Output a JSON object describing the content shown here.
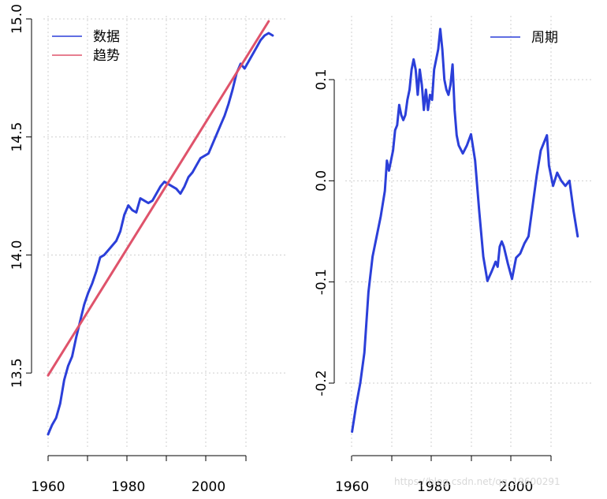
{
  "chart_data": [
    {
      "type": "line",
      "xlim": [
        1960,
        2017
      ],
      "ylim": [
        13.2,
        15.0
      ],
      "x_ticks": [
        1960,
        1980,
        2000
      ],
      "x_tick_labels": [
        "1960",
        "1980",
        "2000"
      ],
      "y_ticks": [
        13.5,
        14.0,
        14.5,
        15.0
      ],
      "y_tick_labels": [
        "13.5",
        "14.0",
        "14.5",
        "15.0"
      ],
      "grid": true,
      "legend_position": "top-left",
      "series": [
        {
          "name": "数据",
          "color": "#2b3fd9",
          "x": [
            1960.0,
            1960.5,
            1961.0,
            1962.0,
            1963.0,
            1964.0,
            1965.0,
            1966.0,
            1967.0,
            1968.0,
            1969.0,
            1970.0,
            1971.0,
            1972.0,
            1973.0,
            1974.0,
            1975.0,
            1976.0,
            1977.0,
            1978.0,
            1979.0,
            1980.0,
            1981.0,
            1982.0,
            1983.0,
            1984.0,
            1985.0,
            1986.0,
            1987.0,
            1988.0,
            1989.0,
            1990.0,
            1991.0,
            1992.0,
            1993.0,
            1994.0,
            1995.0,
            1996.0,
            1997.0,
            1998.0,
            1999.0,
            2000.0,
            2001.0,
            2002.0,
            2003.0,
            2004.0,
            2005.0,
            2006.0,
            2007.0,
            2008.0,
            2009.0,
            2010.0,
            2011.0,
            2012.0,
            2013.0,
            2014.0,
            2015.0,
            2016.0
          ],
          "y": [
            13.24,
            13.26,
            13.28,
            13.31,
            13.37,
            13.47,
            13.53,
            13.57,
            13.65,
            13.72,
            13.79,
            13.84,
            13.88,
            13.93,
            13.99,
            14.0,
            14.02,
            14.04,
            14.06,
            14.1,
            14.17,
            14.21,
            14.19,
            14.18,
            14.24,
            14.23,
            14.22,
            14.23,
            14.26,
            14.29,
            14.31,
            14.3,
            14.29,
            14.28,
            14.26,
            14.29,
            14.33,
            14.35,
            14.38,
            14.41,
            14.42,
            14.43,
            14.47,
            14.51,
            14.55,
            14.59,
            14.64,
            14.7,
            14.77,
            14.81,
            14.79,
            14.82,
            14.85,
            14.88,
            14.91,
            14.93,
            14.94,
            14.93
          ]
        },
        {
          "name": "趋势",
          "color": "#df536b",
          "x": [
            1960,
            2015
          ],
          "y": [
            13.49,
            14.99
          ]
        }
      ]
    },
    {
      "type": "line",
      "xlim": [
        1959.5,
        2016
      ],
      "ylim": [
        -0.26,
        0.16
      ],
      "x_ticks": [
        1960,
        1980,
        2000
      ],
      "x_tick_labels": [
        "1960",
        "1980",
        "2000"
      ],
      "y_ticks": [
        -0.2,
        -0.1,
        0.0,
        0.1
      ],
      "y_tick_labels": [
        "-0.2",
        "-0.1",
        "0.0",
        "0.1"
      ],
      "grid": true,
      "legend_position": "top-right",
      "series": [
        {
          "name": "周期",
          "color": "#2b3fd9",
          "x": [
            1960.0,
            1960.5,
            1961.0,
            1962.0,
            1963.0,
            1964.0,
            1965.0,
            1966.0,
            1967.0,
            1968.0,
            1968.5,
            1969.0,
            1969.5,
            1970.0,
            1970.5,
            1971.0,
            1971.5,
            1972.0,
            1972.5,
            1973.0,
            1973.5,
            1974.0,
            1974.5,
            1975.0,
            1975.5,
            1976.0,
            1976.5,
            1977.0,
            1977.5,
            1978.0,
            1978.5,
            1979.0,
            1979.5,
            1980.0,
            1980.5,
            1981.0,
            1981.5,
            1982.0,
            1982.5,
            1983.0,
            1983.5,
            1984.0,
            1984.5,
            1985.0,
            1985.5,
            1986.0,
            1987.0,
            1988.0,
            1989.0,
            1990.0,
            1991.0,
            1992.0,
            1993.0,
            1994.0,
            1994.5,
            1995.0,
            1995.5,
            1996.0,
            1996.5,
            1997.0,
            1998.0,
            1999.0,
            2000.0,
            2001.0,
            2002.0,
            2003.0,
            2004.0,
            2005.0,
            2006.0,
            2007.0,
            2007.5,
            2008.0,
            2009.0,
            2010.0,
            2011.0,
            2012.0,
            2013.0,
            2014.0,
            2015.0
          ],
          "y": [
            -0.248,
            -0.235,
            -0.222,
            -0.2,
            -0.17,
            -0.11,
            -0.075,
            -0.055,
            -0.035,
            -0.01,
            0.02,
            0.01,
            0.02,
            0.03,
            0.05,
            0.055,
            0.075,
            0.065,
            0.06,
            0.065,
            0.08,
            0.09,
            0.11,
            0.12,
            0.11,
            0.085,
            0.11,
            0.095,
            0.07,
            0.09,
            0.07,
            0.085,
            0.08,
            0.11,
            0.12,
            0.13,
            0.15,
            0.13,
            0.1,
            0.09,
            0.085,
            0.095,
            0.115,
            0.07,
            0.045,
            0.035,
            0.027,
            0.035,
            0.046,
            0.02,
            -0.03,
            -0.075,
            -0.099,
            -0.09,
            -0.085,
            -0.08,
            -0.085,
            -0.065,
            -0.06,
            -0.065,
            -0.082,
            -0.097,
            -0.076,
            -0.072,
            -0.062,
            -0.055,
            -0.025,
            0.005,
            0.03,
            0.04,
            0.045,
            0.015,
            -0.005,
            0.008,
            0.0,
            -0.005,
            0.0,
            -0.03,
            -0.055
          ]
        }
      ]
    }
  ],
  "watermark": "https://blog.csdn.net/qq_19600291"
}
